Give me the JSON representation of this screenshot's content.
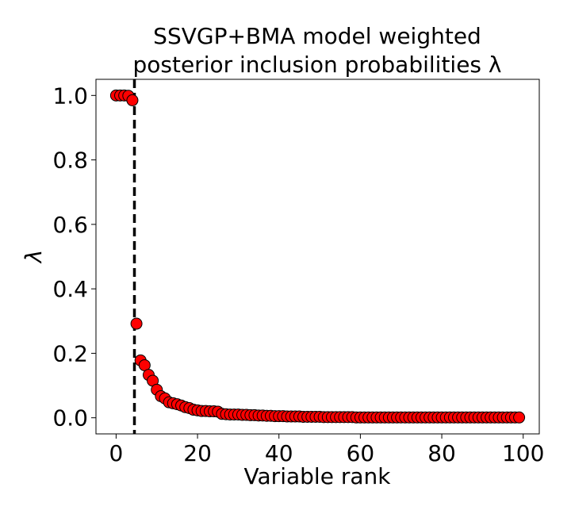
{
  "chart_data": {
    "type": "scatter",
    "title_lines": [
      "SSVGP+BMA model weighted",
      "posterior inclusion probabilities λ"
    ],
    "xlabel": "Variable rank",
    "ylabel": "λ",
    "xlim": [
      -4.95,
      103.95
    ],
    "ylim": [
      -0.05,
      1.05
    ],
    "xticks": [
      0,
      20,
      40,
      60,
      80,
      100
    ],
    "yticks": [
      0.0,
      0.2,
      0.4,
      0.6,
      0.8,
      1.0
    ],
    "xtick_labels": [
      "0",
      "20",
      "40",
      "60",
      "80",
      "100"
    ],
    "ytick_labels": [
      "0.0",
      "0.2",
      "0.4",
      "0.6",
      "0.8",
      "1.0"
    ],
    "vline_x": 4.5,
    "vline_style": "dashed",
    "marker_color": "#ff0000",
    "marker_edge": "#000000",
    "grid": false,
    "x": [
      0,
      1,
      2,
      3,
      4,
      5,
      6,
      7,
      8,
      9,
      10,
      11,
      12,
      13,
      14,
      15,
      16,
      17,
      18,
      19,
      20,
      21,
      22,
      23,
      24,
      25,
      26,
      27,
      28,
      29,
      30,
      31,
      32,
      33,
      34,
      35,
      36,
      37,
      38,
      39,
      40,
      41,
      42,
      43,
      44,
      45,
      46,
      47,
      48,
      49,
      50,
      51,
      52,
      53,
      54,
      55,
      56,
      57,
      58,
      59,
      60,
      61,
      62,
      63,
      64,
      65,
      66,
      67,
      68,
      69,
      70,
      71,
      72,
      73,
      74,
      75,
      76,
      77,
      78,
      79,
      80,
      81,
      82,
      83,
      84,
      85,
      86,
      87,
      88,
      89,
      90,
      91,
      92,
      93,
      94,
      95,
      96,
      97,
      98,
      99
    ],
    "y": [
      1.0,
      1.0,
      1.0,
      0.999,
      0.985,
      0.292,
      0.178,
      0.163,
      0.133,
      0.115,
      0.087,
      0.067,
      0.06,
      0.048,
      0.045,
      0.042,
      0.038,
      0.033,
      0.03,
      0.025,
      0.023,
      0.021,
      0.021,
      0.02,
      0.02,
      0.019,
      0.012,
      0.011,
      0.01,
      0.01,
      0.01,
      0.009,
      0.009,
      0.008,
      0.008,
      0.007,
      0.007,
      0.006,
      0.006,
      0.005,
      0.005,
      0.005,
      0.004,
      0.004,
      0.004,
      0.004,
      0.003,
      0.003,
      0.003,
      0.003,
      0.003,
      0.002,
      0.002,
      0.002,
      0.002,
      0.002,
      0.002,
      0.002,
      0.002,
      0.001,
      0.001,
      0.001,
      0.001,
      0.001,
      0.001,
      0.001,
      0.001,
      0.001,
      0.001,
      0.001,
      0.001,
      0.001,
      0.001,
      0.001,
      0.001,
      0.001,
      0.001,
      0.001,
      0.001,
      0.001,
      0.001,
      0.001,
      0.001,
      0.001,
      0.001,
      0.001,
      0.001,
      0.001,
      0.001,
      0.001,
      0.001,
      0.001,
      0.001,
      0.001,
      0.001,
      0.001,
      0.001,
      0.001,
      0.001,
      0.001
    ]
  }
}
